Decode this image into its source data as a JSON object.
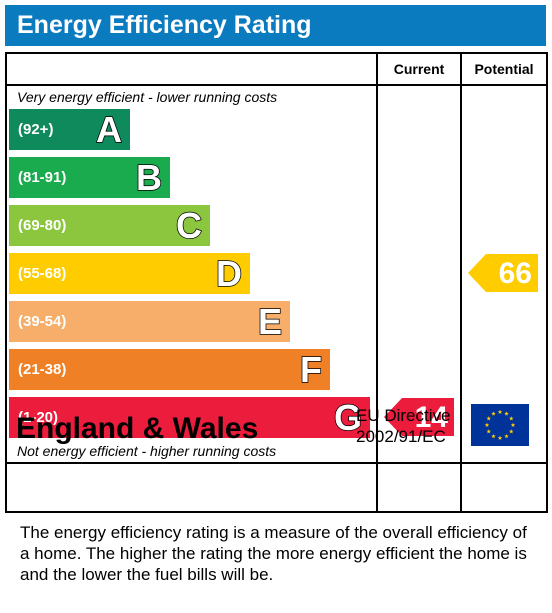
{
  "header": {
    "title": "Energy Efficiency Rating"
  },
  "columns": {
    "current": "Current",
    "potential": "Potential"
  },
  "captions": {
    "top": "Very energy efficient - lower running costs",
    "bottom": "Not energy efficient - higher running costs"
  },
  "footer": {
    "region": "England & Wales",
    "directive_line1": "EU Directive",
    "directive_line2": "2002/91/EC"
  },
  "description": "The energy efficiency rating is a measure of the overall efficiency of a home.  The higher the rating the more energy efficient the home is and the lower the fuel bills will be.",
  "chart_data": {
    "type": "bar",
    "bands": [
      {
        "letter": "A",
        "range": "(92+)",
        "color": "#0f8a5c"
      },
      {
        "letter": "B",
        "range": "(81-91)",
        "color": "#1bab4f"
      },
      {
        "letter": "C",
        "range": "(69-80)",
        "color": "#8cc63e"
      },
      {
        "letter": "D",
        "range": "(55-68)",
        "color": "#ffcc00"
      },
      {
        "letter": "E",
        "range": "(39-54)",
        "color": "#f7ae6a"
      },
      {
        "letter": "F",
        "range": "(21-38)",
        "color": "#f08025"
      },
      {
        "letter": "G",
        "range": "(1-20)",
        "color": "#ec1c3c"
      }
    ],
    "current": {
      "value": 14,
      "band": "G",
      "color": "#ec1c3c"
    },
    "potential": {
      "value": 66,
      "band": "D",
      "color": "#ffcc00"
    }
  }
}
